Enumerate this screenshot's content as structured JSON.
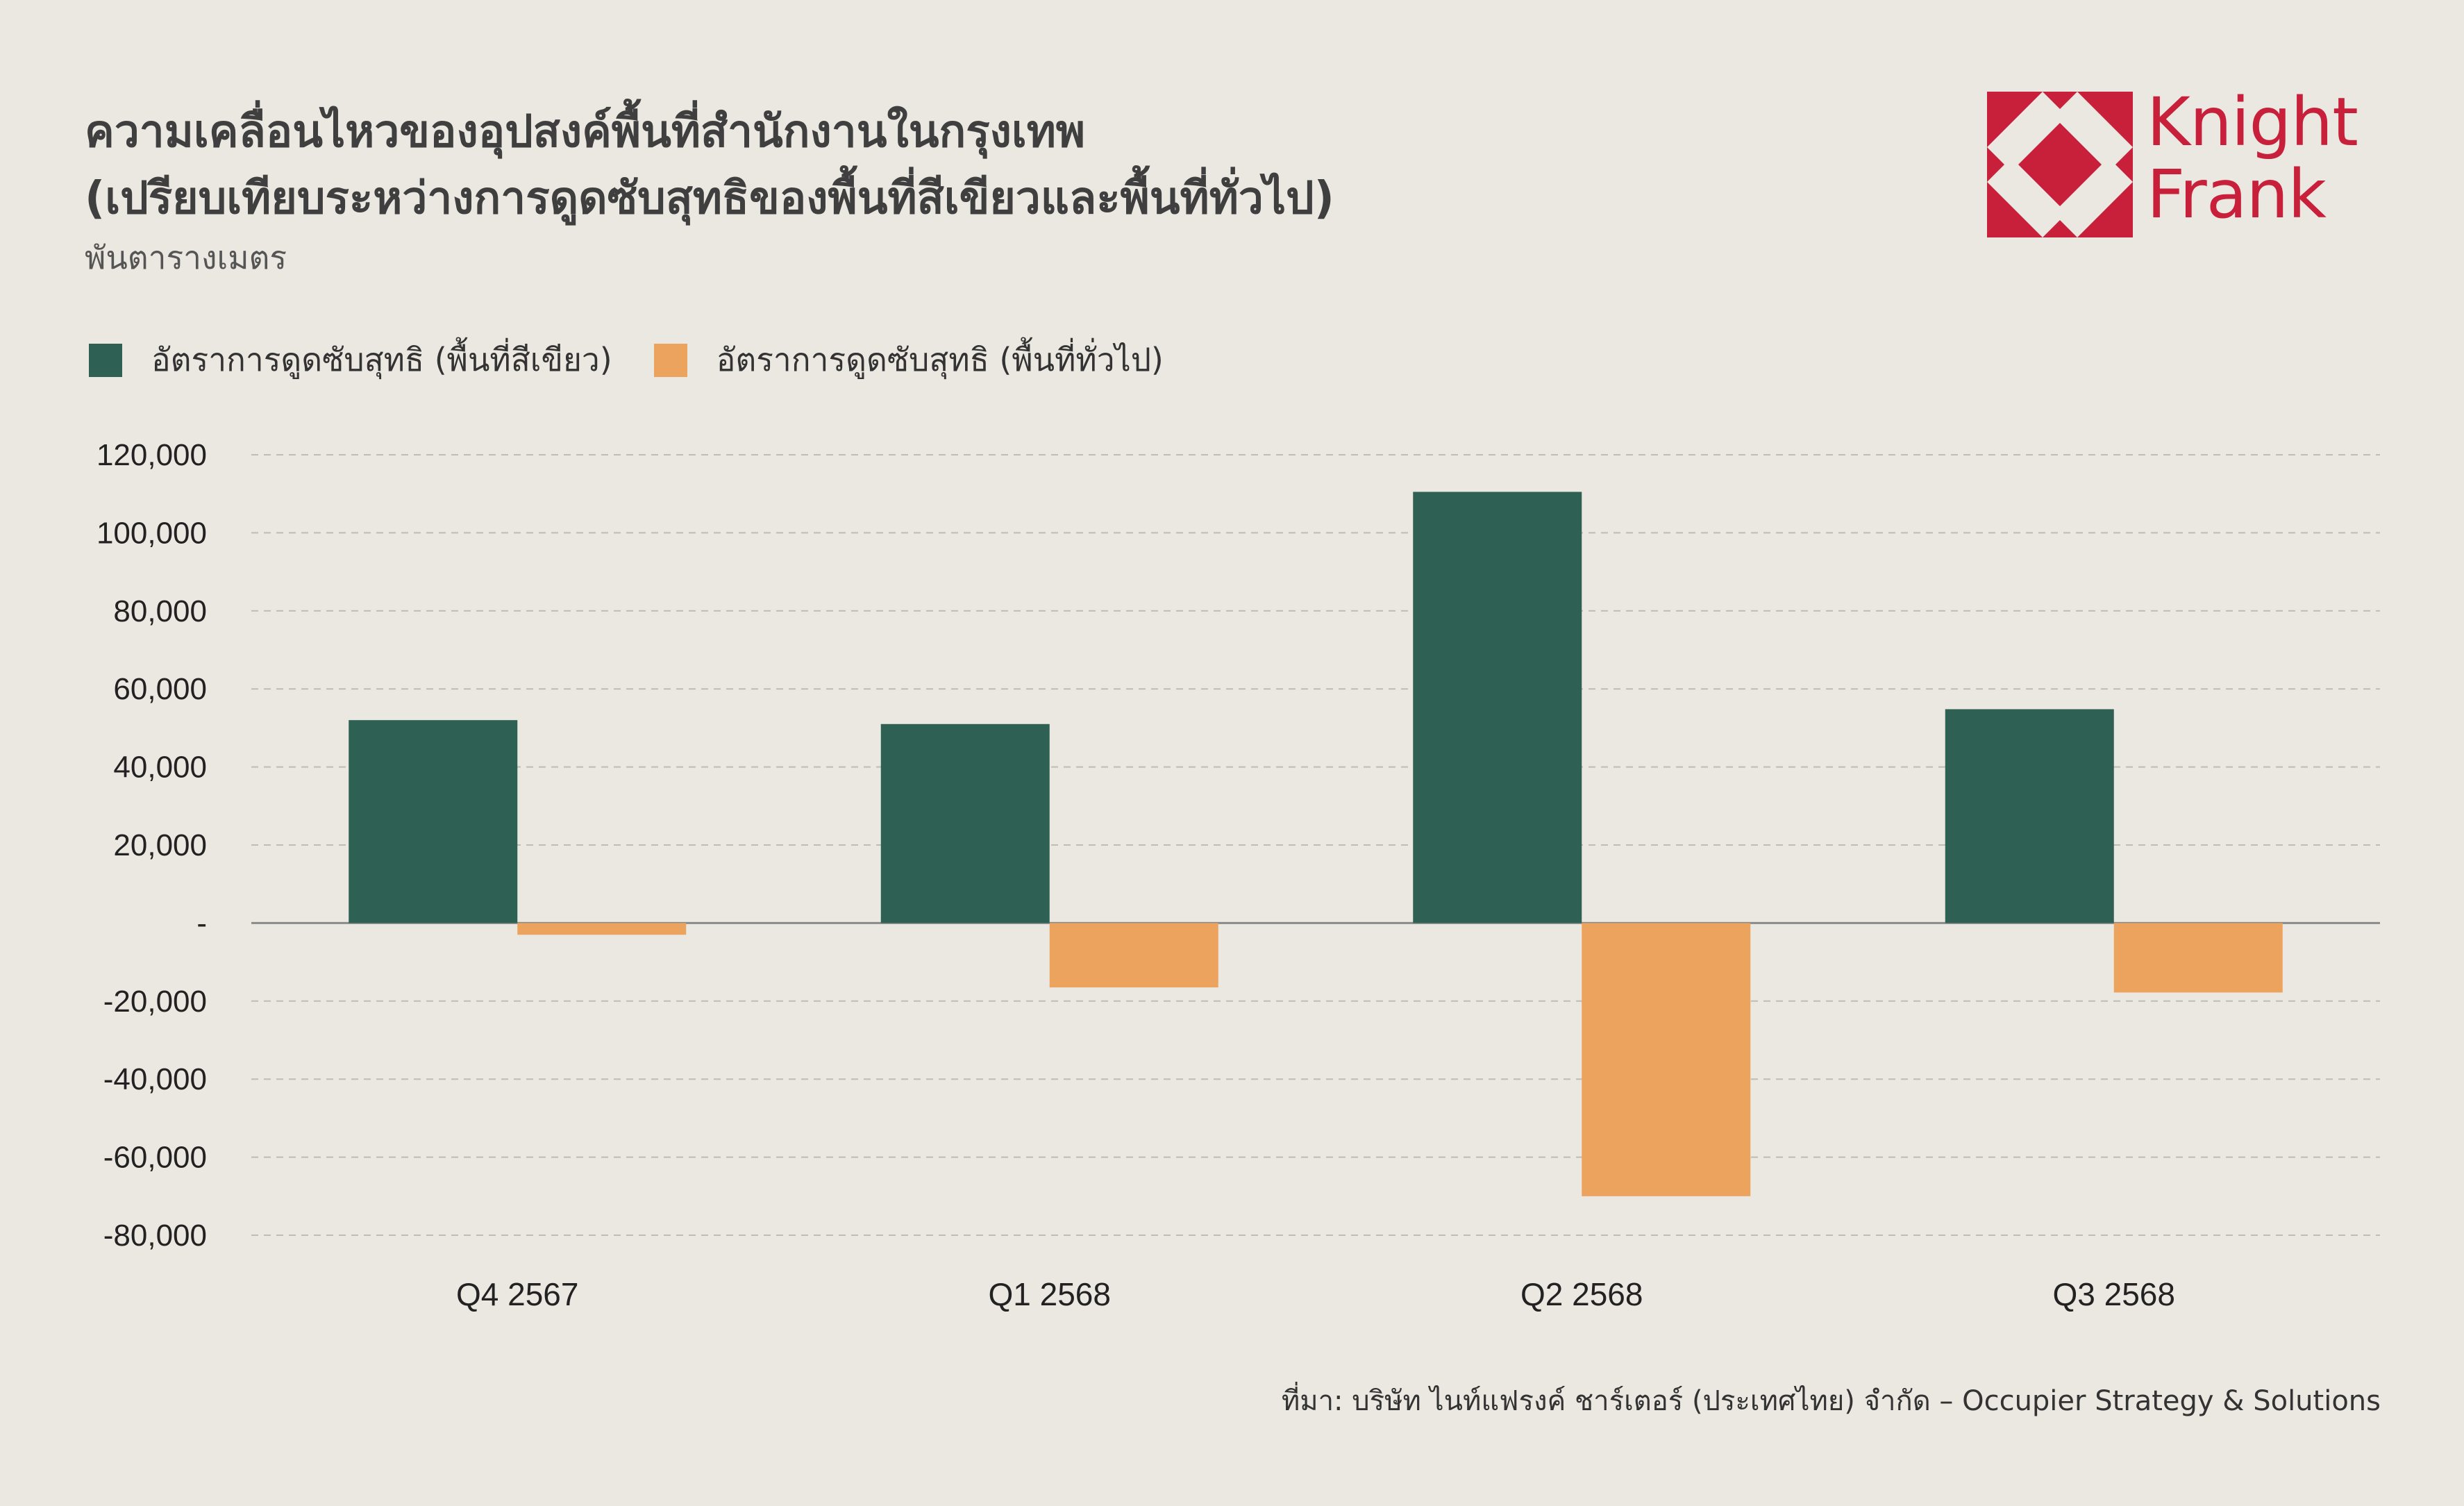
{
  "header": {
    "title_line1": "ความเคลื่อนไหวของอุปสงค์พื้นที่สำนักงานในกรุงเทพ",
    "title_line2": "(เปรียบเทียบระหว่างการดูดซับสุทธิของพื้นที่สีเขียวและพื้นที่ทั่วไป)",
    "unit": "พันตารางเมตร"
  },
  "logo": {
    "line1": "Knight",
    "line2": "Frank",
    "color": "#c8203b"
  },
  "legend": [
    {
      "label": "อัตราการดูดซับสุทธิ (พื้นที่สีเขียว)",
      "color": "#2e6153"
    },
    {
      "label": "อัตราการดูดซับสุทธิ (พื้นที่ทั่วไป)",
      "color": "#eba35e"
    }
  ],
  "chart_data": {
    "type": "bar",
    "categories": [
      "Q4 2567",
      "Q1 2568",
      "Q2 2568",
      "Q3 2568"
    ],
    "series": [
      {
        "name": "อัตราการดูดซับสุทธิ (พื้นที่สีเขียว)",
        "color": "#2e6153",
        "values": [
          52000,
          51000,
          110500,
          54800
        ]
      },
      {
        "name": "อัตราการดูดซับสุทธิ (พื้นที่ทั่วไป)",
        "color": "#eba35e",
        "values": [
          -3000,
          -16500,
          -70000,
          -17800
        ]
      }
    ],
    "ylim": [
      -80000,
      120000
    ],
    "yticks": [
      120000,
      100000,
      80000,
      60000,
      40000,
      20000,
      0,
      -20000,
      -40000,
      -60000,
      -80000
    ],
    "ytick_labels": [
      "120,000",
      "100,000",
      "80,000",
      "60,000",
      "40,000",
      "20,000",
      "-",
      "-20,000",
      "-40,000",
      "-60,000",
      "-80,000"
    ],
    "grid": true,
    "legend_position": "top-left"
  },
  "footer": {
    "source": "ที่มา: บริษัท ไนท์แฟรงค์ ชาร์เตอร์ (ประเทศไทย) จำกัด – Occupier Strategy & Solutions"
  }
}
